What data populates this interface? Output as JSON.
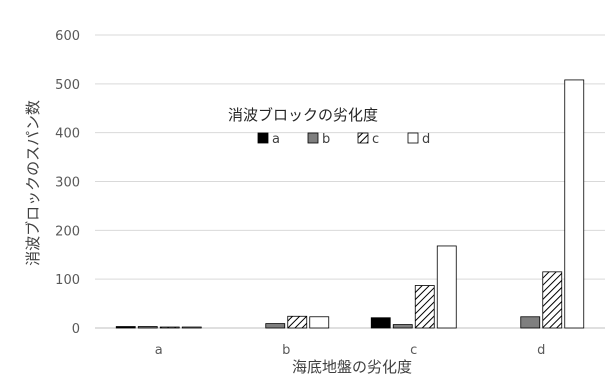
{
  "chart_data": {
    "type": "bar",
    "title": "",
    "xlabel": "海底地盤の劣化度",
    "ylabel": "消波ブロックのスパン数",
    "categories": [
      "a",
      "b",
      "c",
      "d"
    ],
    "ylim": [
      0,
      600
    ],
    "yticks": [
      0,
      100,
      200,
      300,
      400,
      500,
      600
    ],
    "grid": true,
    "legend": {
      "title": "消波ブロックの劣化度",
      "placement": "center"
    },
    "series": [
      {
        "name": "a",
        "values": [
          3,
          0,
          21,
          0
        ]
      },
      {
        "name": "b",
        "values": [
          3,
          9,
          7,
          23
        ]
      },
      {
        "name": "c",
        "values": [
          2,
          24,
          87,
          115
        ]
      },
      {
        "name": "d",
        "values": [
          2,
          23,
          168,
          508
        ]
      }
    ],
    "colors": {
      "a": "#000000",
      "b": "#7f7f7f",
      "c": "hatch",
      "d": "#ffffff",
      "grid": "#d9d9d9",
      "axis": "#bfbfbf"
    }
  }
}
